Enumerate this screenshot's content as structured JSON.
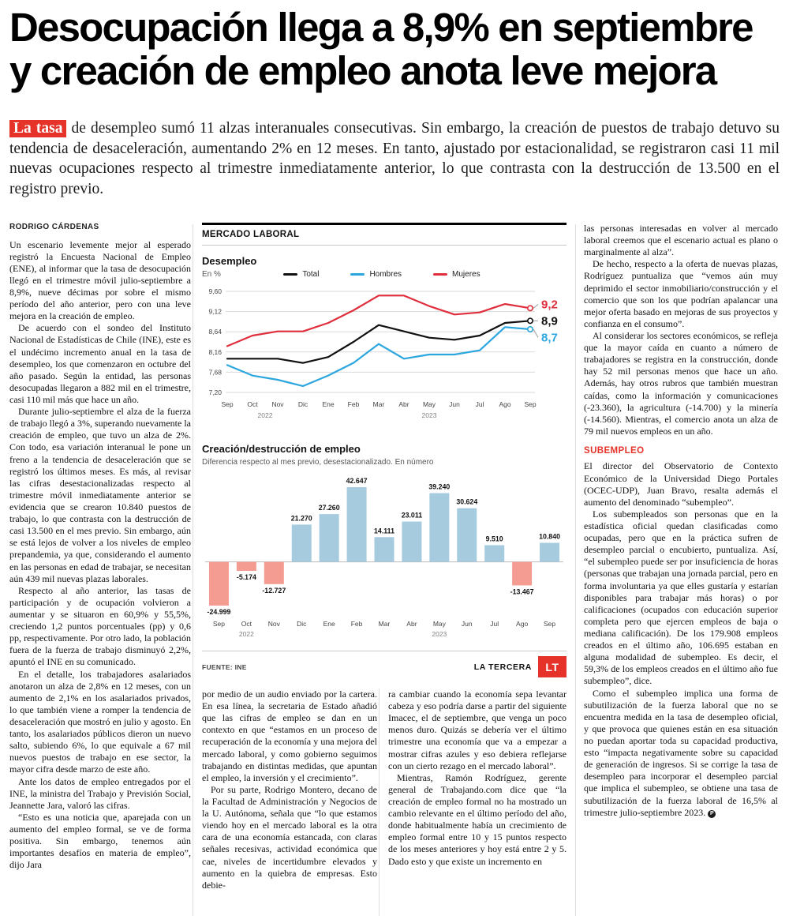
{
  "headline": {
    "line1": "Desocupación llega a 8,9% en septiembre",
    "line2": "y creación de empleo anota leve mejora"
  },
  "lead": {
    "highlight": "La tasa",
    "text": "de desempleo sumó 11 alzas interanuales consecutivas. Sin embargo, la creación de puestos de trabajo detuvo su tendencia de desaceleración, aumentando 2% en 12 meses. En tanto, ajustado por estacionalidad, se registraron casi 11 mil nuevas ocupaciones respecto al trimestre inmediatamente anterior, lo que contrasta con la destrucción de 13.500 en el registro previo."
  },
  "byline": "RODRIGO CÁRDENAS",
  "colors": {
    "accent_red": "#e5332a"
  },
  "columns": {
    "left": [
      "Un escenario levemente mejor al esperado registró la Encuesta Nacional de Empleo (ENE), al informar que la tasa de desocupación llegó en el trimestre móvil julio-septiembre a 8,9%, nueve décimas por sobre el mismo período del año anterior, pero con una leve mejora en la creación de empleo.",
      "De acuerdo con el sondeo del Instituto Nacional de Estadísticas de Chile (INE), este es el undécimo incremento anual en la tasa de desempleo, los que comenzaron en octubre del año pasado. Según la entidad, las personas desocupadas llegaron a 882 mil en el trimestre, casi 110 mil más que hace un año.",
      "Durante julio-septiembre el alza de la fuerza de trabajo llegó a 3%, superando nuevamente la creación de empleo, que tuvo un alza de 2%. Con todo, esa variación interanual le pone un freno a la tendencia de desaceleración que se registró los últimos meses. Es más, al revisar las cifras desestacionalizadas respecto al trimestre móvil inmediatamente anterior se evidencia que se crearon 10.840 puestos de trabajo, lo que contrasta con la destrucción de casi 13.500 en el mes previo. Sin embargo, aún se está lejos de volver a los niveles de empleo prepandemia, ya que, considerando el aumento en las personas en edad de trabajar, se necesitan aún 439 mil nuevas plazas laborales.",
      "Respecto al año anterior, las tasas de participación y de ocupación volvieron a aumentar y se situaron en 60,9% y 55,5%, creciendo 1,2 puntos porcentuales (pp) y 0,6 pp, respectivamente. Por otro lado, la población fuera de la fuerza de trabajo disminuyó 2,2%, apuntó el INE en su comunicado.",
      "En el detalle, los trabajadores asalariados anotaron un alza de 2,8% en 12 meses, con un aumento de 2,1% en los asalariados privados, lo que también viene a romper la tendencia de desaceleración que mostró en julio y agosto. En tanto, los asalariados públicos dieron un nuevo salto, subiendo 6%, lo que equivale a 67 mil nuevos puestos de trabajo en ese sector, la mayor cifra desde marzo de este año.",
      "Ante los datos de empleo entregados por el INE, la ministra del Trabajo y Previsión Social, Jeannette Jara, valoró las cifras.",
      "“Esto es una noticia que, aparejada con un aumento del empleo formal, se ve de forma positiva. Sin embargo, tenemos aún importantes desafíos en materia de empleo”, dijo Jara"
    ],
    "mid_left": [
      "por medio de un audio enviado por la cartera. En esa línea, la secretaria de Estado añadió que las cifras de empleo se dan en un contexto en que “estamos en un proceso de recuperación de la economía y una mejora del mercado laboral, y como gobierno seguimos trabajando en distintas medidas, que apuntan el empleo, la inversión y el crecimiento”.",
      "Por su parte, Rodrigo Montero, decano de la Facultad de Administración y Negocios de la U. Autónoma, señala que “lo que estamos viendo hoy en el mercado laboral es la otra cara de una economía estancada, con claras señales recesivas, actividad económica que cae, niveles de incertidumbre elevados y aumento en la quiebra de empresas. Esto debie-"
    ],
    "mid_right": [
      "ra cambiar cuando la economía sepa levantar cabeza y eso podría darse a partir del siguiente Imacec, el de septiembre, que venga un poco menos duro. Quizás se debería ver el último trimestre una economía que va a empezar a mostrar cifras azules y eso debiera reflejarse con un cierto rezago en el mercado laboral”.",
      "Mientras, Ramón Rodríguez, gerente general de Trabajando.com dice que “la creación de empleo formal no ha mostrado un cambio relevante en el último período del año, donde habitualmente había un crecimiento de empleo formal entre 10 y 15 puntos respecto de los meses anteriores y hoy está entre 2 y 5. Dado esto y que existe un incremento en"
    ],
    "right_top": [
      "las personas interesadas en volver al mercado laboral creemos que el escenario actual es plano o marginalmente al alza”.",
      "De hecho, respecto a la oferta de nuevas plazas, Rodríguez puntualiza que “vemos aún muy deprimido el sector inmobiliario/construcción y el comercio que son los que podrían apalancar una mejor oferta basado en mejoras de sus proyectos y confianza en el consumo”.",
      "Al considerar los sectores económicos, se refleja que la mayor caída en cuanto a número de trabajadores se registra en la construcción, donde hay 52 mil personas menos que hace un año. Además, hay otros rubros que también muestran caídas, como la información y comunicaciones (-23.360), la agricultura (-14.700) y la minería (-14.560). Mientras, el comercio anota un alza de 79 mil nuevos empleos en un año."
    ],
    "subhead": "SUBEMPLEO",
    "right_bottom": [
      "El director del Observatorio de Contexto Económico de la Universidad Diego Portales (OCEC-UDP), Juan Bravo, resalta además el aumento del denominado “subempleo”.",
      "Los subempleados son personas que en la estadística oficial quedan clasificadas como ocupadas, pero que en la práctica sufren de desempleo parcial o encubierto, puntualiza. Así, “el subempleo puede ser por insuficiencia de horas (personas que trabajan una jornada parcial, pero en forma involuntaria ya que elles gustaría y estarían disponibles para trabajar más horas) o por calificaciones (ocupados con educación superior completa pero que ejercen empleos de baja o mediana calificación). De los 179.908 empleos creados en el último año, 106.695 estaban en alguna modalidad de subempleo. Es decir, el 59,3% de los empleos creados en el último año fue subempleo”, dice.",
      "Como el subempleo implica una forma de subutilización de la fuerza laboral que no se encuentra medida en la tasa de desempleo oficial, y que provoca que quienes están en esa situación no puedan aportar toda su capacidad productiva, esto “impacta negativamente sobre su capacidad de generación de ingresos. Si se corrige la tasa de desempleo para incorporar el desempleo parcial que implica el subempleo, se obtiene una tasa de subutilización de la fuerza laboral de 16,5% al trimestre julio-septiembre 2023."
    ],
    "end_mark": "P"
  },
  "chart_panel": {
    "kicker": "MERCADO LABORAL",
    "source": "FUENTE: INE",
    "credit": "LA TERCERA",
    "logo_text": "LT"
  },
  "chart_data": [
    {
      "type": "line",
      "title": "Desempleo",
      "subtitle": "En %",
      "x": [
        "Sep",
        "Oct",
        "Nov",
        "Dic",
        "Ene",
        "Feb",
        "Mar",
        "Abr",
        "May",
        "Jun",
        "Jul",
        "Ago",
        "Sep"
      ],
      "years": [
        {
          "label": "2022",
          "i": 1.5
        },
        {
          "label": "2023",
          "i": 8
        }
      ],
      "ylim": [
        7.2,
        9.6
      ],
      "yticks": [
        {
          "v": 9.6,
          "label": "9,60"
        },
        {
          "v": 9.12,
          "label": "9,12"
        },
        {
          "v": 8.64,
          "label": "8,64"
        },
        {
          "v": 8.16,
          "label": "8,16"
        },
        {
          "v": 7.68,
          "label": "7,68"
        },
        {
          "v": 7.2,
          "label": "7,20"
        }
      ],
      "series": [
        {
          "name": "Total",
          "color": "#111111",
          "end_label": "8,9",
          "values": [
            8.0,
            8.0,
            8.0,
            7.9,
            8.04,
            8.4,
            8.8,
            8.65,
            8.5,
            8.45,
            8.55,
            8.85,
            8.9
          ]
        },
        {
          "name": "Hombres",
          "color": "#2ba6de",
          "end_label": "8,7",
          "values": [
            7.85,
            7.6,
            7.5,
            7.35,
            7.6,
            7.9,
            8.35,
            8.0,
            8.1,
            8.1,
            8.2,
            8.75,
            8.7
          ]
        },
        {
          "name": "Mujeres",
          "color": "#e02e3d",
          "end_label": "9,2",
          "values": [
            8.3,
            8.55,
            8.65,
            8.65,
            8.85,
            9.15,
            9.5,
            9.5,
            9.25,
            9.05,
            9.1,
            9.3,
            9.2
          ]
        }
      ],
      "grid": true,
      "legend_position": "top"
    },
    {
      "type": "bar",
      "title": "Creación/destrucción de empleo",
      "subtitle": "Diferencia respecto al mes previo, desestacionalizado. En número",
      "categories": [
        "Sep",
        "Oct",
        "Nov",
        "Dic",
        "Ene",
        "Feb",
        "Mar",
        "Abr",
        "May",
        "Jun",
        "Jul",
        "Ago",
        "Sep"
      ],
      "years": [
        {
          "label": "2022",
          "i": 1
        },
        {
          "label": "2023",
          "i": 8
        }
      ],
      "values": [
        -24999,
        -5174,
        -12727,
        21270,
        27260,
        42647,
        14111,
        23011,
        39240,
        30624,
        9510,
        -13467,
        10840
      ],
      "labels": [
        "-24.999",
        "-5.174",
        "-12.727",
        "21.270",
        "27.260",
        "42.647",
        "14.111",
        "23.011",
        "39.240",
        "30.624",
        "9.510",
        "-13.467",
        "10.840"
      ],
      "positive_color": "#a6cbdf",
      "negative_color": "#f49c92"
    }
  ]
}
